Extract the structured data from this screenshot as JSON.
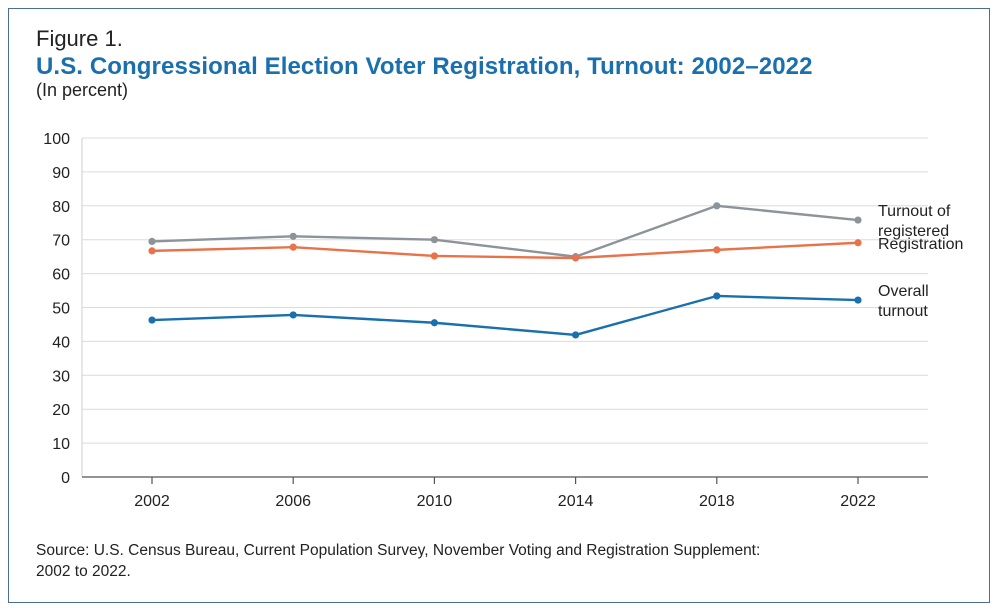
{
  "figure_label": "Figure 1.",
  "title": "U.S. Congressional Election Voter Registration, Turnout: 2002–2022",
  "subtitle": "(In percent)",
  "source_line1": "Source: U.S. Census Bureau, Current Population Survey, November Voting and Registration Supplement:",
  "source_line2": "2002 to 2022.",
  "colors": {
    "title": "#1a6fad",
    "turnout_registered": "#8c9399",
    "registration": "#e8734a",
    "overall_turnout": "#1a6fad",
    "grid": "#dcdcdc"
  },
  "chart_data": {
    "type": "line",
    "title": "U.S. Congressional Election Voter Registration, Turnout: 2002–2022",
    "ylabel": "(In percent)",
    "xlabel": "",
    "categories": [
      "2002",
      "2006",
      "2010",
      "2014",
      "2018",
      "2022"
    ],
    "ylim": [
      0,
      100
    ],
    "yticks": [
      "0",
      "10",
      "20",
      "30",
      "40",
      "50",
      "60",
      "70",
      "80",
      "90",
      "100"
    ],
    "grid": true,
    "series": [
      {
        "name": "Turnout of registered",
        "label_lines": [
          "Turnout of",
          "registered"
        ],
        "color_key": "turnout_registered",
        "values": [
          69.5,
          71.0,
          70.0,
          65.0,
          80.0,
          75.8
        ]
      },
      {
        "name": "Registration",
        "label_lines": [
          "Registration"
        ],
        "color_key": "registration",
        "values": [
          66.7,
          67.8,
          65.2,
          64.6,
          67.0,
          69.1
        ]
      },
      {
        "name": "Overall turnout",
        "label_lines": [
          "Overall",
          "turnout"
        ],
        "color_key": "overall_turnout",
        "values": [
          46.3,
          47.8,
          45.5,
          41.9,
          53.4,
          52.2
        ]
      }
    ]
  }
}
